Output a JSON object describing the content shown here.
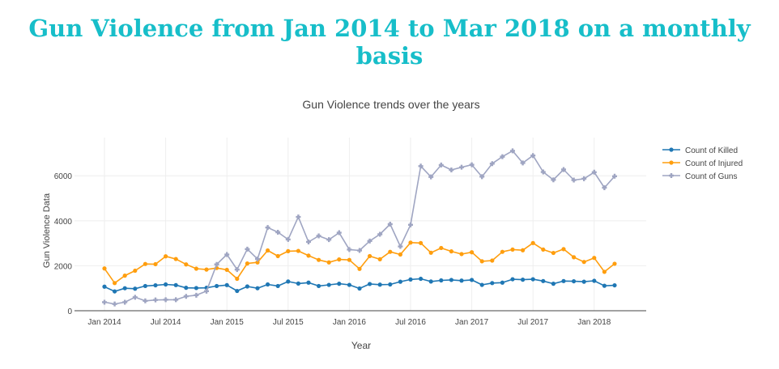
{
  "page": {
    "title": "Gun Violence from Jan 2014 to Mar 2018 on a monthly basis"
  },
  "chart_data": {
    "type": "line",
    "title": "Gun Violence trends over the years",
    "xlabel": "Year",
    "ylabel": "Gun Violence Data",
    "x_tick_labels": [
      "Jan 2014",
      "Jul 2014",
      "Jan 2015",
      "Jul 2015",
      "Jan 2016",
      "Jul 2016",
      "Jan 2017",
      "Jul 2017",
      "Jan 2018"
    ],
    "y_tick_labels": [
      "0",
      "2000",
      "4000",
      "6000"
    ],
    "ylim": [
      0,
      7700
    ],
    "x_start": "Jan 2014",
    "x_end": "Mar 2018",
    "grid": true,
    "legend_position": "top-right",
    "x": [
      "Jan 2014",
      "Feb 2014",
      "Mar 2014",
      "Apr 2014",
      "May 2014",
      "Jun 2014",
      "Jul 2014",
      "Aug 2014",
      "Sep 2014",
      "Oct 2014",
      "Nov 2014",
      "Dec 2014",
      "Jan 2015",
      "Feb 2015",
      "Mar 2015",
      "Apr 2015",
      "May 2015",
      "Jun 2015",
      "Jul 2015",
      "Aug 2015",
      "Sep 2015",
      "Oct 2015",
      "Nov 2015",
      "Dec 2015",
      "Jan 2016",
      "Feb 2016",
      "Mar 2016",
      "Apr 2016",
      "May 2016",
      "Jun 2016",
      "Jul 2016",
      "Aug 2016",
      "Sep 2016",
      "Oct 2016",
      "Nov 2016",
      "Dec 2016",
      "Jan 2017",
      "Feb 2017",
      "Mar 2017",
      "Apr 2017",
      "May 2017",
      "Jun 2017",
      "Jul 2017",
      "Aug 2017",
      "Sep 2017",
      "Oct 2017",
      "Nov 2017",
      "Dec 2017",
      "Jan 2018",
      "Feb 2018",
      "Mar 2018"
    ],
    "series": [
      {
        "name": "Count of Killed",
        "color": "#1f77b4",
        "marker": "circle",
        "values": [
          1070,
          860,
          1000,
          980,
          1100,
          1130,
          1170,
          1140,
          1020,
          1010,
          1020,
          1100,
          1140,
          880,
          1080,
          1000,
          1170,
          1100,
          1300,
          1210,
          1250,
          1100,
          1150,
          1200,
          1150,
          990,
          1190,
          1160,
          1170,
          1290,
          1390,
          1420,
          1300,
          1350,
          1370,
          1340,
          1370,
          1150,
          1230,
          1250,
          1400,
          1380,
          1400,
          1320,
          1200,
          1320,
          1310,
          1290,
          1330,
          1110,
          1130
        ]
      },
      {
        "name": "Count of Injured",
        "color": "#ff9e0e",
        "marker": "circle",
        "values": [
          1880,
          1230,
          1560,
          1780,
          2080,
          2070,
          2420,
          2300,
          2060,
          1870,
          1830,
          1900,
          1820,
          1420,
          2100,
          2150,
          2680,
          2430,
          2650,
          2660,
          2450,
          2260,
          2150,
          2280,
          2260,
          1860,
          2430,
          2290,
          2620,
          2500,
          3030,
          3010,
          2580,
          2790,
          2640,
          2520,
          2600,
          2200,
          2230,
          2620,
          2720,
          2690,
          3010,
          2720,
          2570,
          2740,
          2380,
          2170,
          2350,
          1730,
          2090
        ]
      },
      {
        "name": "Count of Guns",
        "color": "#9fa5c2",
        "marker": "cross",
        "values": [
          380,
          300,
          380,
          600,
          440,
          480,
          490,
          490,
          640,
          690,
          870,
          2060,
          2500,
          1830,
          2740,
          2300,
          3700,
          3490,
          3170,
          4170,
          3060,
          3330,
          3160,
          3470,
          2720,
          2680,
          3100,
          3400,
          3850,
          2860,
          3820,
          6430,
          5950,
          6480,
          6260,
          6380,
          6490,
          5960,
          6540,
          6850,
          7110,
          6570,
          6900,
          6170,
          5820,
          6280,
          5810,
          5870,
          6160,
          5470,
          5980
        ]
      }
    ]
  }
}
